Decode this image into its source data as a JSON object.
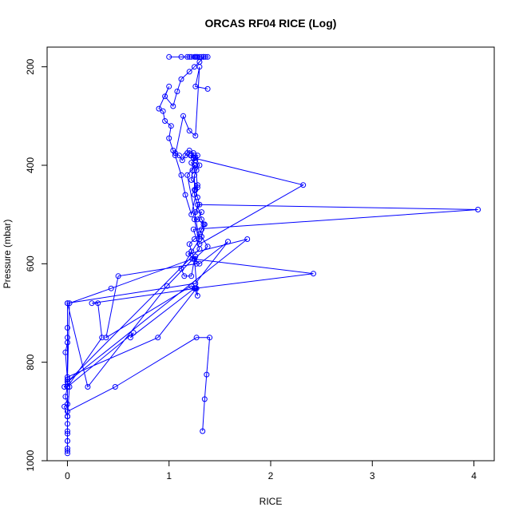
{
  "chart_data": {
    "type": "line",
    "title": "ORCAS RF04 RICE (Log)",
    "xlabel": "RICE",
    "ylabel": "Pressure (mbar)",
    "xlim": [
      -0.2,
      4.2
    ],
    "ylim": [
      1000,
      160
    ],
    "y_reversed": true,
    "x_ticks": [
      0,
      1,
      2,
      3,
      4
    ],
    "y_ticks": [
      200,
      400,
      600,
      800,
      1000
    ],
    "grid": false,
    "legend": "none",
    "colors": {
      "series": "#0000ff",
      "axis": "#000000"
    },
    "markers": "open-circle",
    "series": [
      {
        "x": [
          0.0,
          0.0,
          0.0,
          0.0,
          0.0,
          0.0,
          -0.03,
          0.0,
          -0.02,
          0.0,
          0.0,
          -0.03,
          0.0,
          0.0,
          0.0,
          0.47,
          1.27,
          1.4,
          1.37,
          1.35,
          1.33
        ],
        "y": [
          985,
          975,
          960,
          945,
          925,
          910,
          890,
          885,
          870,
          850,
          835,
          850,
          850,
          910,
          900,
          850,
          750,
          750,
          825,
          875,
          940
        ]
      },
      {
        "x": [
          0.0,
          0.0,
          0.0,
          0.0,
          0.02,
          0.0,
          0.0,
          -0.02,
          0.0,
          0.0,
          0.0,
          0.0,
          0.0,
          0.34,
          0.3,
          0.24,
          1.26,
          1.25,
          1.28,
          1.25,
          1.22,
          1.2,
          1.25,
          1.3,
          1.32,
          1.34,
          1.28,
          1.32,
          1.26,
          1.3,
          1.28,
          1.26,
          1.25,
          1.28,
          1.22,
          1.23,
          1.25,
          1.22,
          1.26,
          1.24,
          1.28,
          1.22,
          1.24,
          1.2,
          1.18,
          1.16,
          1.13,
          1.1,
          1.06,
          1.04,
          1.0,
          1.02,
          0.96,
          0.94,
          0.9,
          1.0,
          0.96,
          1.04,
          1.08,
          1.12,
          1.2,
          1.25,
          1.3,
          1.34,
          1.38,
          1.36,
          1.34,
          1.32,
          1.3,
          1.28,
          1.27,
          1.26,
          1.25,
          1.22,
          1.2,
          1.18,
          1.12,
          1.0
        ],
        "y": [
          980,
          960,
          940,
          910,
          850,
          840,
          835,
          780,
          760,
          750,
          730,
          680,
          850,
          750,
          680,
          680,
          650,
          650,
          665,
          590,
          575,
          560,
          550,
          540,
          530,
          520,
          510,
          495,
          495,
          480,
          465,
          450,
          450,
          440,
          430,
          410,
          400,
          395,
          390,
          385,
          380,
          380,
          375,
          370,
          375,
          380,
          390,
          380,
          375,
          370,
          345,
          320,
          310,
          290,
          285,
          240,
          260,
          280,
          250,
          225,
          210,
          200,
          190,
          180,
          180,
          180,
          180,
          180,
          180,
          180,
          180,
          180,
          180,
          180,
          180,
          180,
          180,
          180
        ]
      },
      {
        "x": [
          0.0,
          0.65,
          0.62,
          1.25,
          1.26,
          2.42,
          1.23,
          0.43,
          0.02,
          0.0,
          0.89,
          1.27,
          1.22,
          0.38,
          0.5,
          1.27,
          1.26,
          0.98,
          0.2,
          0.0,
          1.26,
          1.58,
          1.3,
          1.19,
          1.77,
          0.0,
          1.3,
          1.24,
          4.04,
          1.28,
          1.25,
          1.3,
          2.32,
          1.24,
          1.21,
          1.25,
          1.26,
          1.3,
          1.27,
          1.25,
          1.25,
          1.32,
          1.35,
          1.32,
          1.38,
          1.25,
          1.22,
          1.15,
          1.12,
          1.3,
          1.18,
          1.26,
          1.28,
          1.22,
          1.16,
          1.12,
          1.06,
          1.14,
          1.2,
          1.26,
          1.3,
          1.26,
          1.38
        ],
        "y": [
          850,
          740,
          750,
          650,
          650,
          620,
          590,
          650,
          680,
          830,
          750,
          650,
          645,
          750,
          625,
          600,
          585,
          645,
          850,
          680,
          640,
          555,
          600,
          580,
          550,
          840,
          570,
          530,
          490,
          480,
          510,
          560,
          440,
          385,
          380,
          380,
          385,
          400,
          410,
          420,
          460,
          510,
          520,
          545,
          565,
          590,
          625,
          625,
          610,
          550,
          420,
          400,
          445,
          500,
          460,
          420,
          380,
          300,
          330,
          340,
          200,
          240,
          245
        ]
      }
    ]
  }
}
